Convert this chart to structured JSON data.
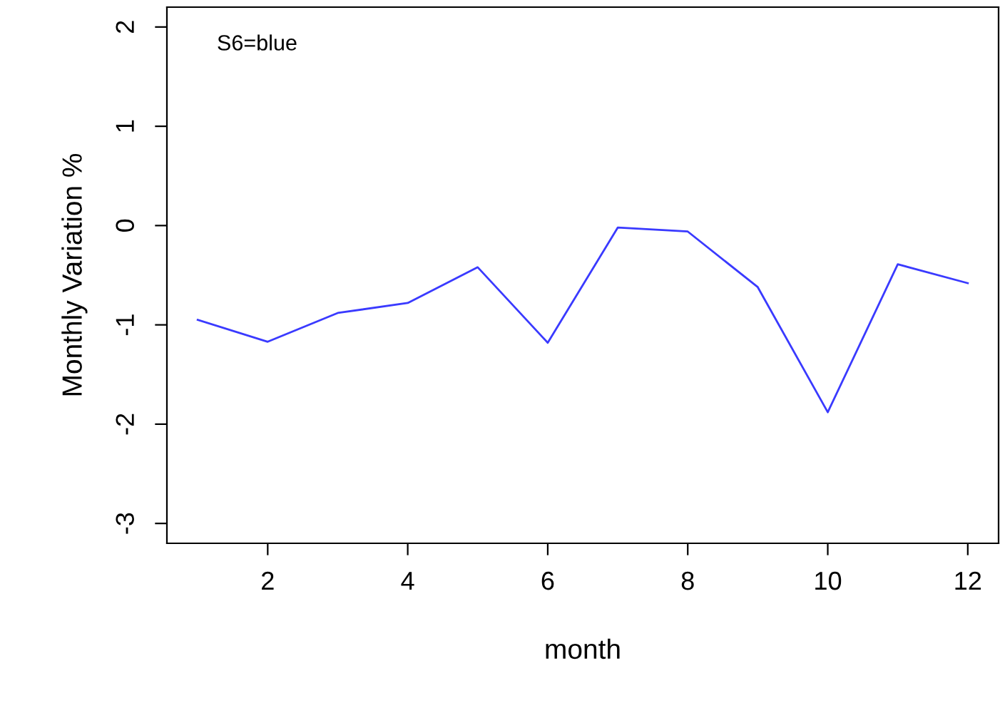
{
  "chart_data": {
    "type": "line",
    "xlabel": "month",
    "ylabel": "Monthly Variation %",
    "annotations": [
      "S6=blue"
    ],
    "x": [
      1,
      2,
      3,
      4,
      5,
      6,
      7,
      8,
      9,
      10,
      11,
      12
    ],
    "series": [
      {
        "color": "#3a3aff",
        "values": [
          -0.95,
          -1.17,
          -0.88,
          -0.78,
          -0.42,
          -1.18,
          -0.02,
          -0.06,
          -0.62,
          -1.88,
          -0.39,
          -0.58
        ]
      }
    ],
    "xlim": [
      0.56,
      12.44
    ],
    "ylim": [
      -3.2,
      2.2
    ],
    "xticks": [
      2,
      4,
      6,
      8,
      10,
      12
    ],
    "yticks": [
      -3,
      -2,
      -1,
      0,
      1,
      2
    ],
    "grid": false,
    "marker": "none",
    "line_style": "solid"
  }
}
